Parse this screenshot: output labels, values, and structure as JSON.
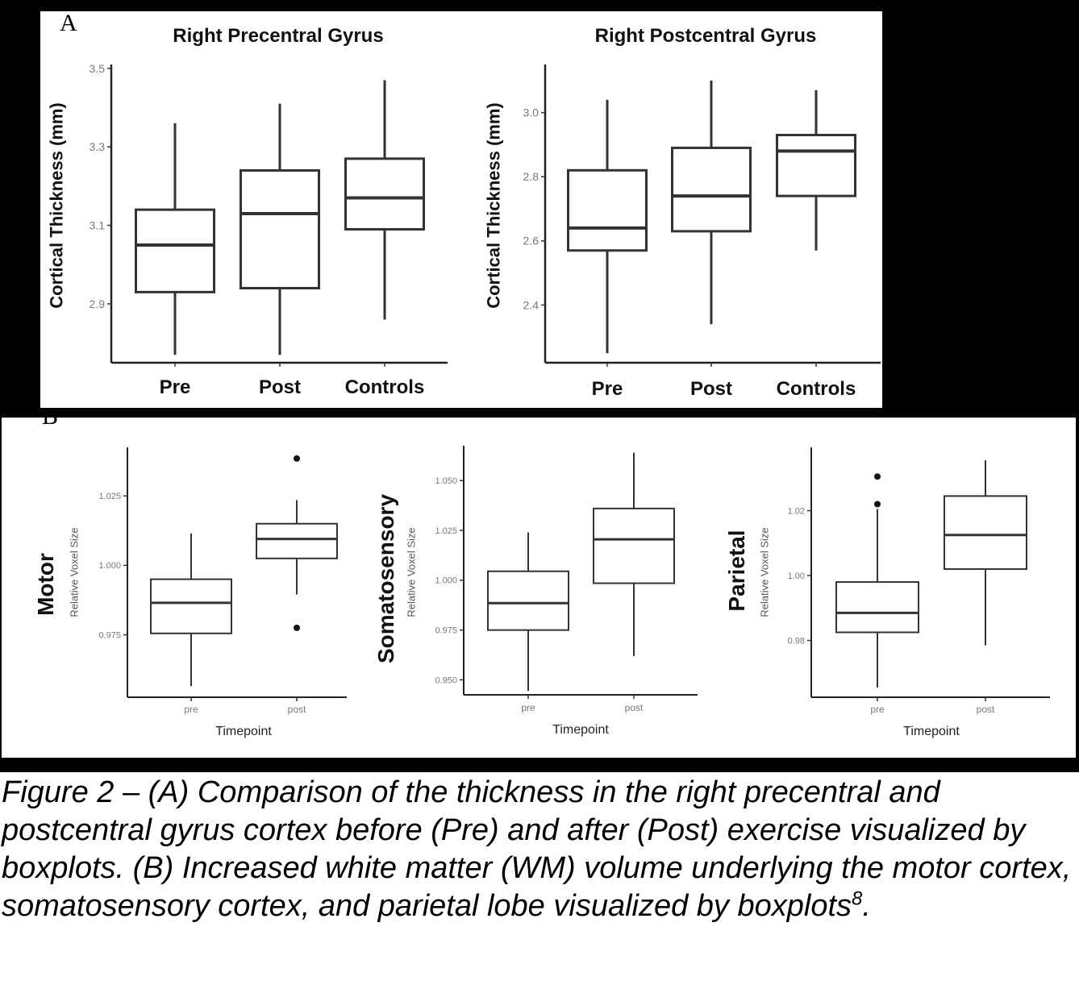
{
  "panel_labels": {
    "a": "A",
    "b": "B"
  },
  "caption": {
    "text": "Figure 2 – (A) Comparison of the thickness in the right precentral and postcentral gyrus cortex before (Pre) and after (Post) exercise visualized by boxplots. (B) Increased white matter (WM) volume underlying the motor cortex, somatosensory cortex, and parietal lobe visualized by boxplots",
    "superscript": "8",
    "end": "."
  },
  "chart_data": [
    {
      "type": "boxplot",
      "title": "Right Precentral Gyrus",
      "xlabel": "",
      "ylabel": "Cortical Thickness (mm)",
      "ylim": [
        2.75,
        3.51
      ],
      "yticks": [
        "2.9",
        "3.1",
        "3.3",
        "3.5"
      ],
      "ytick_values": [
        2.9,
        3.1,
        3.3,
        3.5
      ],
      "categories": [
        "Pre",
        "Post",
        "Controls"
      ],
      "boxes": [
        {
          "min": 2.77,
          "q1": 2.93,
          "median": 3.05,
          "q3": 3.14,
          "max": 3.36
        },
        {
          "min": 2.77,
          "q1": 2.94,
          "median": 3.13,
          "q3": 3.24,
          "max": 3.41
        },
        {
          "min": 2.86,
          "q1": 3.09,
          "median": 3.17,
          "q3": 3.27,
          "max": 3.47
        }
      ],
      "outliers": []
    },
    {
      "type": "boxplot",
      "title": "Right Postcentral Gyrus",
      "xlabel": "",
      "ylabel": "Cortical Thickness (mm)",
      "ylim": [
        2.22,
        3.15
      ],
      "yticks": [
        "2.4",
        "2.6",
        "2.8",
        "3.0"
      ],
      "ytick_values": [
        2.4,
        2.6,
        2.8,
        3.0
      ],
      "categories": [
        "Pre",
        "Post",
        "Controls"
      ],
      "boxes": [
        {
          "min": 2.25,
          "q1": 2.57,
          "median": 2.64,
          "q3": 2.82,
          "max": 3.04
        },
        {
          "min": 2.34,
          "q1": 2.63,
          "median": 2.74,
          "q3": 2.89,
          "max": 3.1
        },
        {
          "min": 2.57,
          "q1": 2.74,
          "median": 2.88,
          "q3": 2.93,
          "max": 3.07
        }
      ],
      "outliers": []
    },
    {
      "type": "boxplot",
      "title": "Motor",
      "xlabel": "Timepoint",
      "ylabel": "Relative Voxel Size",
      "ylim": [
        0.9525,
        1.0425
      ],
      "yticks": [
        "0.975",
        "1.000",
        "1.025"
      ],
      "ytick_values": [
        0.975,
        1.0,
        1.025
      ],
      "categories": [
        "pre",
        "post"
      ],
      "boxes": [
        {
          "min": 0.9565,
          "q1": 0.9755,
          "median": 0.9865,
          "q3": 0.995,
          "max": 1.0115
        },
        {
          "min": 0.9895,
          "q1": 1.0025,
          "median": 1.0095,
          "q3": 1.015,
          "max": 1.0235
        }
      ],
      "outliers": [
        {
          "category": "post",
          "value": 1.0385
        },
        {
          "category": "post",
          "value": 0.9775
        }
      ]
    },
    {
      "type": "boxplot",
      "title": "Somatosensory",
      "xlabel": "Timepoint",
      "ylabel": "Relative Voxel Size",
      "ylim": [
        0.9425,
        1.0675
      ],
      "yticks": [
        "0.950",
        "0.975",
        "1.000",
        "1.025",
        "1.050"
      ],
      "ytick_values": [
        0.95,
        0.975,
        1.0,
        1.025,
        1.05
      ],
      "categories": [
        "pre",
        "post"
      ],
      "boxes": [
        {
          "min": 0.9445,
          "q1": 0.975,
          "median": 0.9885,
          "q3": 1.0045,
          "max": 1.024
        },
        {
          "min": 0.962,
          "q1": 0.9985,
          "median": 1.0205,
          "q3": 1.036,
          "max": 1.064
        }
      ],
      "outliers": []
    },
    {
      "type": "boxplot",
      "title": "Parietal",
      "xlabel": "Timepoint",
      "ylabel": "Relative Voxel Size",
      "ylim": [
        0.9625,
        1.0395
      ],
      "yticks": [
        "0.98",
        "1.00",
        "1.02"
      ],
      "ytick_values": [
        0.98,
        1.0,
        1.02
      ],
      "categories": [
        "pre",
        "post"
      ],
      "boxes": [
        {
          "min": 0.9655,
          "q1": 0.9825,
          "median": 0.9885,
          "q3": 0.998,
          "max": 1.0205
        },
        {
          "min": 0.9785,
          "q1": 1.002,
          "median": 1.0125,
          "q3": 1.0245,
          "max": 1.0355
        }
      ],
      "outliers": [
        {
          "category": "pre",
          "value": 1.0305
        },
        {
          "category": "pre",
          "value": 1.022
        }
      ]
    }
  ]
}
